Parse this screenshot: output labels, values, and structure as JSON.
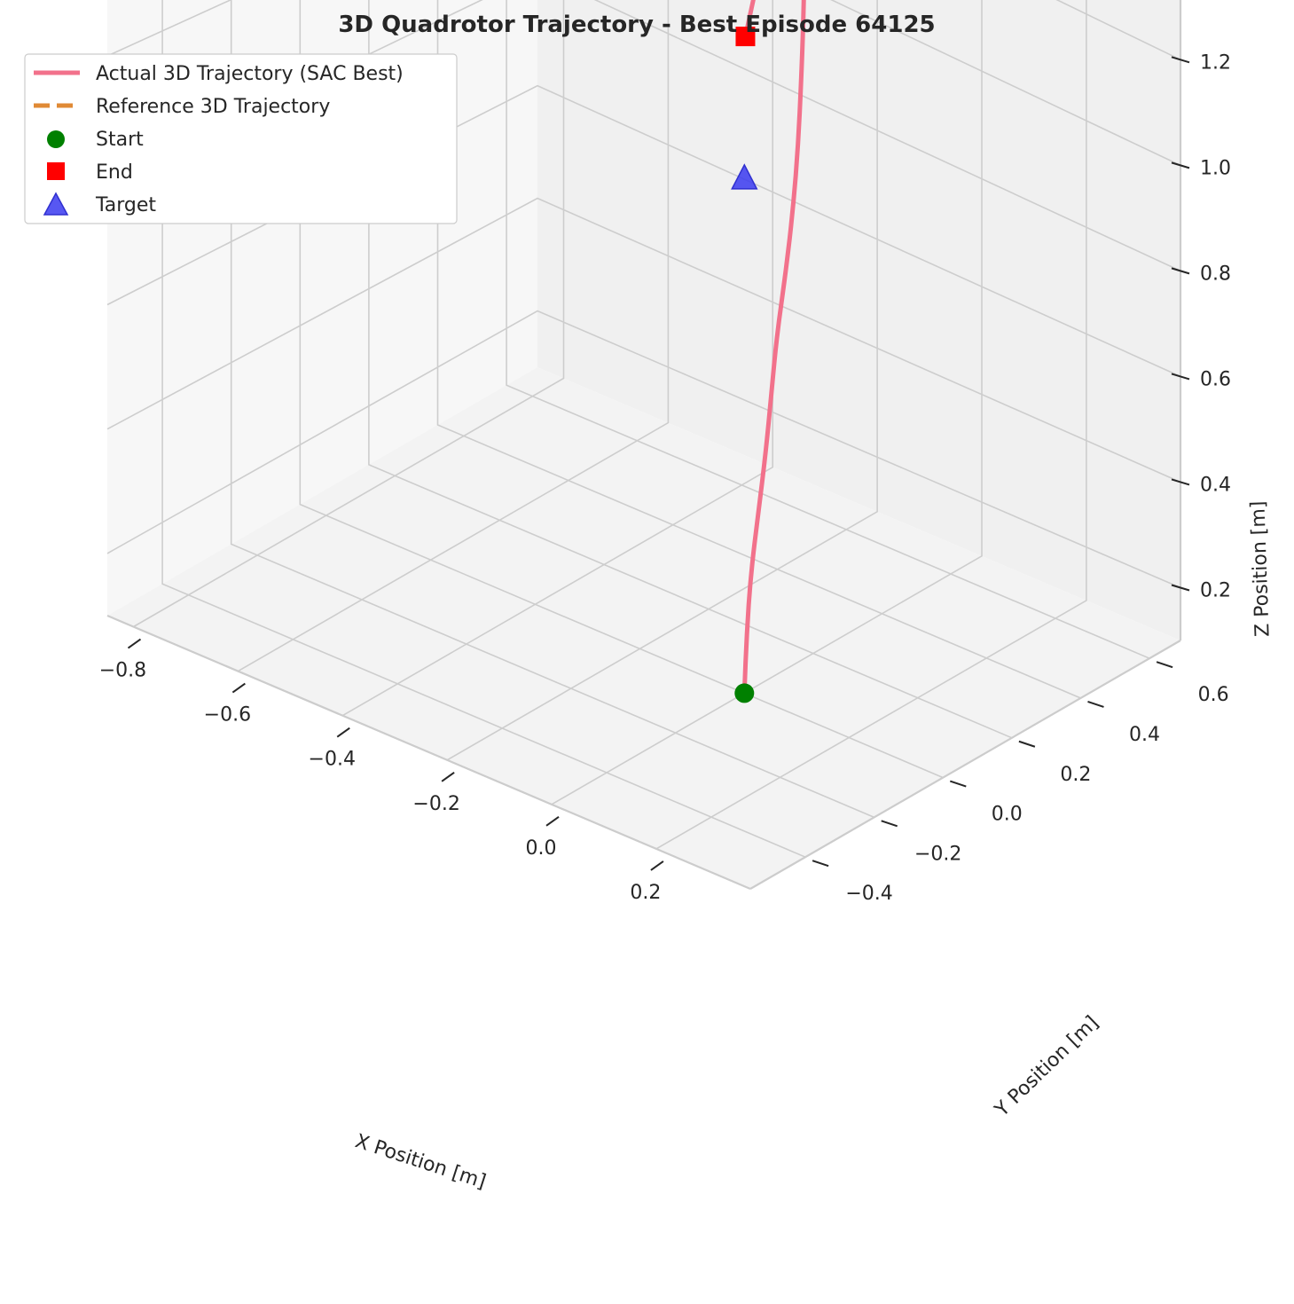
{
  "chart_data": {
    "type": "line",
    "projection": "3d",
    "title": "3D Quadrotor Trajectory - Best Episode 64125",
    "xlabel": "X Position [m]",
    "ylabel": "Y Position [m]",
    "zlabel": "Z Position [m]",
    "xlim": [
      -0.85,
      0.38
    ],
    "ylim": [
      -0.56,
      0.69
    ],
    "zlim": [
      0.1,
      1.34
    ],
    "x_ticks": [
      -0.8,
      -0.6,
      -0.4,
      -0.2,
      0.0,
      0.2
    ],
    "x_tick_labels": [
      "−0.8",
      "−0.6",
      "−0.4",
      "−0.2",
      "0.0",
      "0.2"
    ],
    "y_ticks": [
      -0.4,
      -0.2,
      0.0,
      0.2,
      0.4,
      0.6
    ],
    "y_tick_labels": [
      "−0.4",
      "−0.2",
      "0.0",
      "0.2",
      "0.4",
      "0.6"
    ],
    "z_ticks": [
      0.2,
      0.4,
      0.6,
      0.8,
      1.0,
      1.2
    ],
    "z_tick_labels": [
      "0.2",
      "0.4",
      "0.6",
      "0.8",
      "1.0",
      "1.2"
    ],
    "grid": true,
    "legend_position": "top-left",
    "series": [
      {
        "name": "Actual 3D Trajectory (SAC Best)",
        "color": "#f2718b",
        "style": "solid",
        "x": [
          0.0,
          -0.002,
          -0.001,
          0.0,
          0.001,
          -0.001,
          -0.003,
          -0.006,
          -0.012,
          -0.022,
          -0.036,
          -0.052,
          -0.07,
          -0.092,
          -0.12,
          -0.148,
          -0.178,
          -0.205,
          -0.222,
          -0.23,
          -0.235
        ],
        "y": [
          0.0,
          0.01,
          0.02,
          0.04,
          0.06,
          0.08,
          0.1,
          0.13,
          0.16,
          0.19,
          0.22,
          0.25,
          0.28,
          0.31,
          0.33,
          0.35,
          0.36,
          0.37,
          0.375,
          0.37,
          0.36
        ],
        "z": [
          0.1,
          0.2,
          0.3,
          0.4,
          0.5,
          0.6,
          0.7,
          0.8,
          0.9,
          1.0,
          1.1,
          1.18,
          1.25,
          1.3,
          1.32,
          1.3,
          1.25,
          1.2,
          1.15,
          1.1,
          1.05
        ]
      },
      {
        "name": "Reference 3D Trajectory",
        "color": "#e08a35",
        "style": "dashed",
        "x": [],
        "y": [],
        "z": []
      }
    ],
    "markers": [
      {
        "name": "Start",
        "shape": "circle",
        "color": "#008000",
        "x": 0.0,
        "y": 0.0,
        "z": 0.1
      },
      {
        "name": "End",
        "shape": "square",
        "color": "#ff0000",
        "x": -0.235,
        "y": 0.36,
        "z": 1.05
      },
      {
        "name": "Target",
        "shape": "triangle",
        "color": "#3a3af0",
        "x": 0.0,
        "y": 0.0,
        "z": 1.0
      }
    ]
  }
}
